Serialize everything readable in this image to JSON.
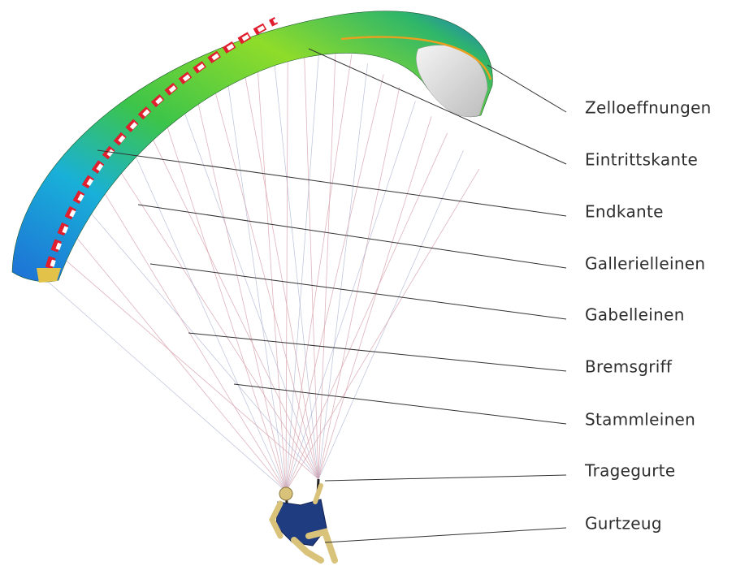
{
  "labels": [
    "Zelloeffnungen",
    "Eintrittskante",
    "Endkante",
    "Gallerielleinen",
    "Gabelleinen",
    "Bremsgriff",
    "Stammleinen",
    "Tragegurte",
    "Gurtzeug"
  ]
}
